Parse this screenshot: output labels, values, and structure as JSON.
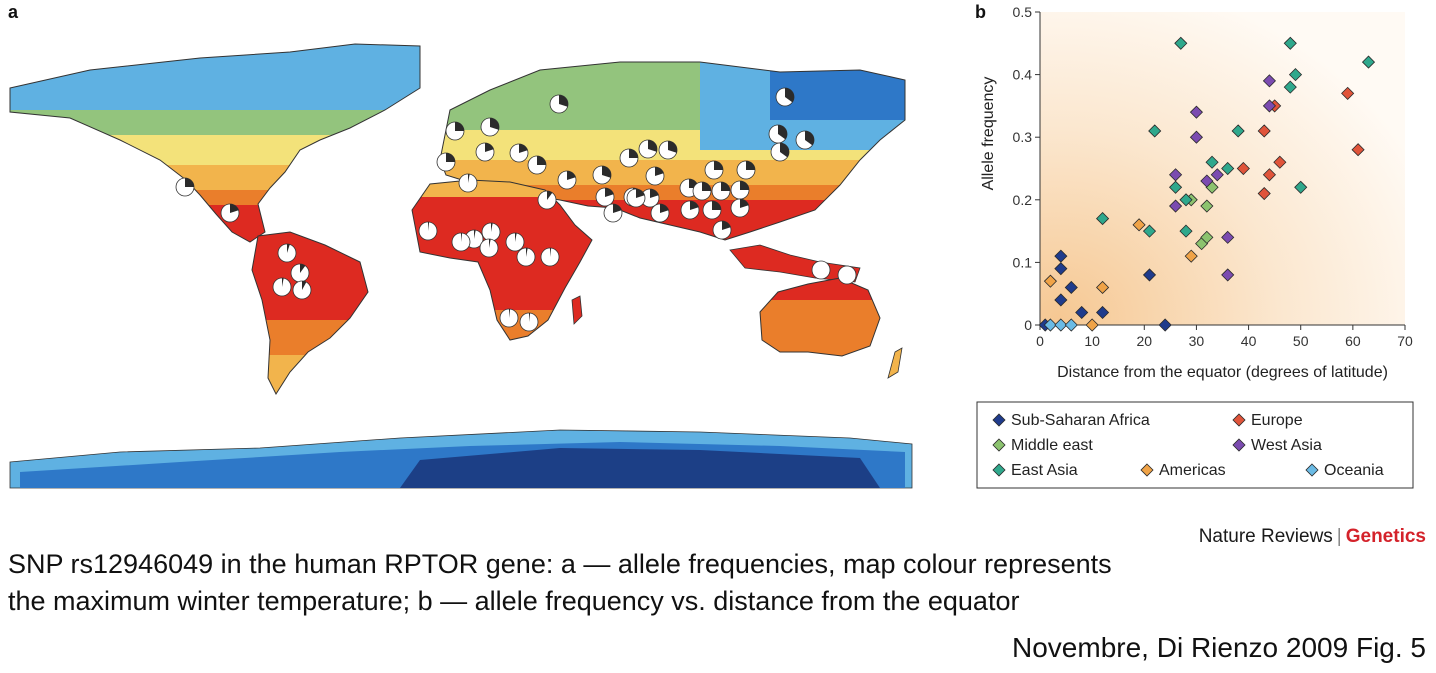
{
  "map_panel": {
    "letter": "a",
    "colors": {
      "ocean": "#ffffff",
      "very_cold": "#1c3f86",
      "cold": "#2e78c8",
      "cool": "#5fb1e2",
      "mild": "#93c47d",
      "temperate": "#f3e27a",
      "warm": "#f2b44c",
      "hot": "#ea7e2b",
      "tropical": "#dd2a21"
    },
    "pie_colors": {
      "derived": "#2b2b2b",
      "ancestral": "#ffffff"
    }
  },
  "scatter_panel": {
    "letter": "b"
  },
  "chart_data": {
    "type": "scatter",
    "xlabel": "Distance from the equator (degrees of latitude)",
    "ylabel": "Allele frequency",
    "xlim": [
      0,
      70
    ],
    "ylim": [
      0,
      0.5
    ],
    "xticks": [
      "0",
      "10",
      "20",
      "30",
      "40",
      "50",
      "60",
      "70"
    ],
    "yticks": [
      "0",
      "0.1",
      "0.2",
      "0.3",
      "0.4",
      "0.5"
    ],
    "legend_position": "below",
    "series": [
      {
        "name": "Sub-Saharan Africa",
        "color": "#1f3b8c",
        "points": [
          [
            1,
            0
          ],
          [
            4,
            0.09
          ],
          [
            4,
            0.04
          ],
          [
            4,
            0.11
          ],
          [
            6,
            0.06
          ],
          [
            8,
            0.02
          ],
          [
            12,
            0.02
          ],
          [
            21,
            0.08
          ],
          [
            24,
            0
          ]
        ]
      },
      {
        "name": "Europe",
        "color": "#e0543a",
        "points": [
          [
            39,
            0.25
          ],
          [
            43,
            0.31
          ],
          [
            43,
            0.21
          ],
          [
            44,
            0.24
          ],
          [
            45,
            0.35
          ],
          [
            46,
            0.26
          ],
          [
            59,
            0.37
          ],
          [
            61,
            0.28
          ]
        ]
      },
      {
        "name": "Middle east",
        "color": "#8cc36f",
        "points": [
          [
            29,
            0.2
          ],
          [
            31,
            0.13
          ],
          [
            32,
            0.14
          ],
          [
            32,
            0.19
          ],
          [
            33,
            0.22
          ]
        ]
      },
      {
        "name": "West Asia",
        "color": "#7b4bb0",
        "points": [
          [
            26,
            0.19
          ],
          [
            26,
            0.24
          ],
          [
            30,
            0.3
          ],
          [
            30,
            0.34
          ],
          [
            32,
            0.23
          ],
          [
            34,
            0.24
          ],
          [
            36,
            0.14
          ],
          [
            36,
            0.08
          ],
          [
            44,
            0.39
          ],
          [
            44,
            0.35
          ]
        ]
      },
      {
        "name": "East Asia",
        "color": "#2fa88c",
        "points": [
          [
            12,
            0.17
          ],
          [
            21,
            0.15
          ],
          [
            22,
            0.31
          ],
          [
            26,
            0.22
          ],
          [
            27,
            0.45
          ],
          [
            28,
            0.2
          ],
          [
            28,
            0.15
          ],
          [
            33,
            0.26
          ],
          [
            36,
            0.25
          ],
          [
            38,
            0.31
          ],
          [
            48,
            0.38
          ],
          [
            48,
            0.45
          ],
          [
            49,
            0.4
          ],
          [
            50,
            0.22
          ],
          [
            63,
            0.42
          ]
        ]
      },
      {
        "name": "Americas",
        "color": "#f0a347",
        "points": [
          [
            2,
            0.07
          ],
          [
            10,
            0
          ],
          [
            12,
            0.06
          ],
          [
            19,
            0.16
          ],
          [
            29,
            0.11
          ]
        ]
      },
      {
        "name": "Oceania",
        "color": "#6bbbe5",
        "points": [
          [
            2,
            0
          ],
          [
            4,
            0
          ],
          [
            6,
            0
          ]
        ]
      }
    ]
  },
  "credit": {
    "journal": "Nature Reviews",
    "separator": "|",
    "field": "Genetics"
  },
  "caption": {
    "line1": "SNP rs12946049 in the human RPTOR gene: a — allele frequencies, map colour represents",
    "line2": "the maximum winter temperature; b — allele frequency vs. distance from the equator"
  },
  "source": "Novembre, Di Rienzo 2009 Fig. 5"
}
